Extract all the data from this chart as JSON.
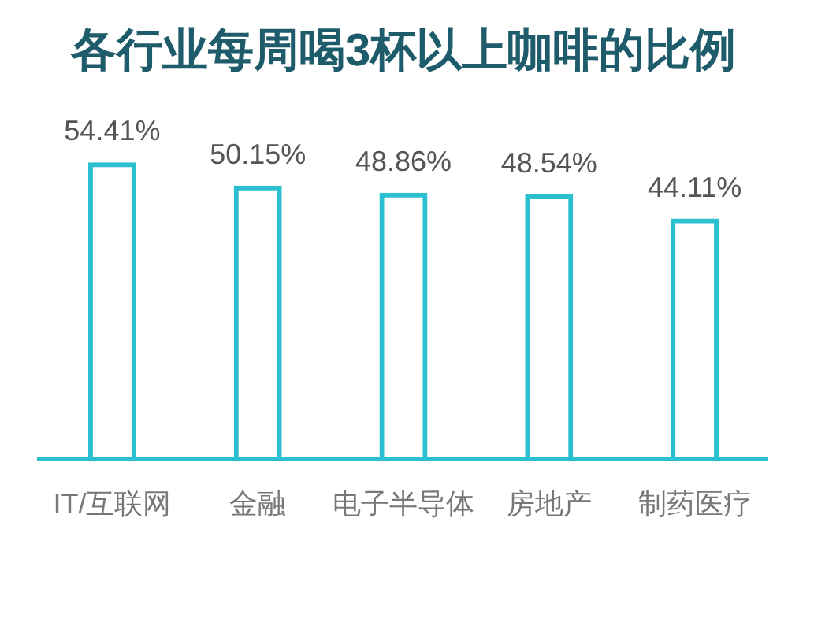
{
  "chart_data": {
    "type": "bar",
    "title": "各行业每周喝3杯以上咖啡的比例",
    "categories": [
      "IT/互联网",
      "金融",
      "电子半导体",
      "房地产",
      "制药医疗"
    ],
    "values": [
      54.41,
      50.15,
      48.86,
      48.54,
      44.11
    ],
    "value_labels": [
      "54.41%",
      "50.15%",
      "48.86%",
      "48.54%",
      "44.11%"
    ],
    "color": "#2bc0cf"
  }
}
